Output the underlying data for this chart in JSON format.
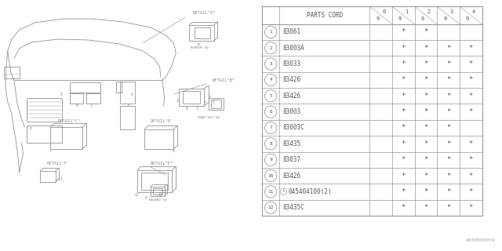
{
  "bg_color": "#ffffff",
  "rows": [
    {
      "num": "1",
      "part": "83061",
      "stars": [
        false,
        true,
        true,
        false,
        false
      ]
    },
    {
      "num": "2",
      "part": "83003A",
      "stars": [
        false,
        true,
        true,
        true,
        true
      ]
    },
    {
      "num": "3",
      "part": "83033",
      "stars": [
        false,
        true,
        true,
        true,
        true
      ]
    },
    {
      "num": "4",
      "part": "83426",
      "stars": [
        false,
        true,
        true,
        true,
        true
      ]
    },
    {
      "num": "5",
      "part": "83426",
      "stars": [
        false,
        true,
        true,
        true,
        true
      ]
    },
    {
      "num": "6",
      "part": "83003",
      "stars": [
        false,
        true,
        true,
        true,
        true
      ]
    },
    {
      "num": "7",
      "part": "83003C",
      "stars": [
        false,
        true,
        true,
        true,
        false
      ]
    },
    {
      "num": "8",
      "part": "83435",
      "stars": [
        false,
        true,
        true,
        true,
        true
      ]
    },
    {
      "num": "9",
      "part": "83037",
      "stars": [
        false,
        true,
        true,
        true,
        true
      ]
    },
    {
      "num": "10",
      "part": "83426",
      "stars": [
        false,
        true,
        true,
        true,
        true
      ]
    },
    {
      "num": "11",
      "part": "S045404100(2)",
      "stars": [
        false,
        true,
        true,
        true,
        true
      ],
      "s_circle": true
    },
    {
      "num": "12",
      "part": "83435C",
      "stars": [
        false,
        true,
        true,
        true,
        true
      ]
    }
  ],
  "year_cols": [
    "9\n0",
    "9\n1",
    "9\n2",
    "9\n3",
    "9\n4"
  ],
  "watermark": "A830B00059",
  "line_color": "#aaaaaa",
  "text_color": "#555555",
  "draw_color": "#888888"
}
